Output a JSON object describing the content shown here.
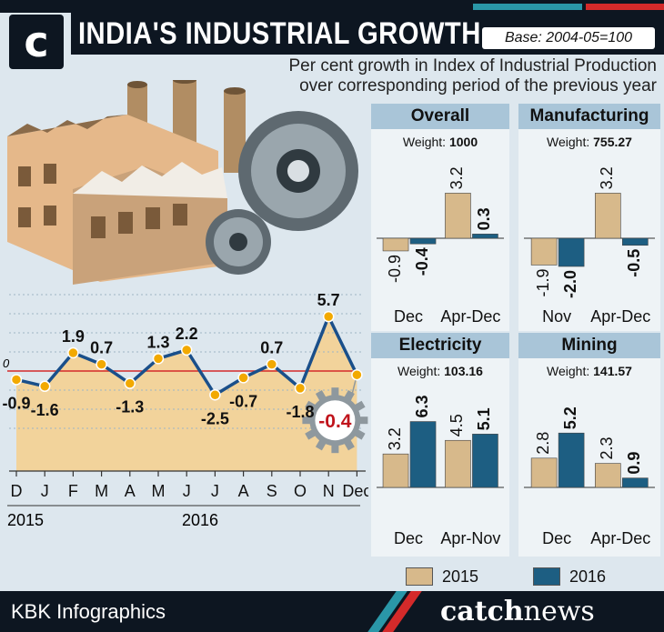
{
  "header": {
    "logo_letter": "c",
    "title": "INDIA'S INDUSTRIAL GROWTH",
    "base": "Base: 2004-05=100",
    "subtitle_line1": "Per cent growth in Index of Industrial Production",
    "subtitle_line2": "over corresponding period of the previous year"
  },
  "colors": {
    "series_2015": "#d7b98b",
    "series_2016": "#1d5e82",
    "area_fill": "#f2d39b",
    "line": "#1a4f8a",
    "marker": "#f2a900",
    "zero_line": "#d42a2a",
    "highlight_value": "#c0141c"
  },
  "chart_data": [
    {
      "type": "line",
      "zero_label": "0",
      "categories": [
        "D",
        "J",
        "F",
        "M",
        "A",
        "M",
        "J",
        "J",
        "A",
        "S",
        "O",
        "N",
        "Dec"
      ],
      "values": [
        -0.9,
        -1.6,
        1.9,
        0.7,
        -1.3,
        1.3,
        2.2,
        -2.5,
        -0.7,
        0.7,
        -1.8,
        5.7,
        -0.4
      ],
      "value_labels": [
        "-0.9",
        "-1.6",
        "1.9",
        "0.7",
        "-1.3",
        "1.3",
        "2.2",
        "-2.5",
        "-0.7",
        "0.7",
        "-1.8",
        "5.7",
        "-0.4"
      ],
      "year_labels": [
        "2015",
        "2016"
      ],
      "highlight_index": 12
    },
    {
      "type": "bar",
      "title": "Overall",
      "weight_label": "Weight:",
      "weight": "1000",
      "categories": [
        "Dec",
        "Apr-Dec"
      ],
      "series": [
        {
          "name": "2015",
          "values": [
            -0.9,
            3.2
          ],
          "labels": [
            "-0.9",
            "3.2"
          ]
        },
        {
          "name": "2016",
          "values": [
            -0.4,
            0.3
          ],
          "labels": [
            "-0.4",
            "0.3"
          ]
        }
      ]
    },
    {
      "type": "bar",
      "title": "Manufacturing",
      "weight_label": "Weight:",
      "weight": "755.27",
      "categories": [
        "Nov",
        "Apr-Dec"
      ],
      "series": [
        {
          "name": "2015",
          "values": [
            -1.9,
            3.2
          ],
          "labels": [
            "-1.9",
            "3.2"
          ]
        },
        {
          "name": "2016",
          "values": [
            -2.0,
            -0.5
          ],
          "labels": [
            "-2.0",
            "-0.5"
          ]
        }
      ]
    },
    {
      "type": "bar",
      "title": "Electricity",
      "weight_label": "Weight:",
      "weight": "103.16",
      "categories": [
        "Dec",
        "Apr-Nov"
      ],
      "series": [
        {
          "name": "2015",
          "values": [
            3.2,
            4.5
          ],
          "labels": [
            "3.2",
            "4.5"
          ]
        },
        {
          "name": "2016",
          "values": [
            6.3,
            5.1
          ],
          "labels": [
            "6.3",
            "5.1"
          ]
        }
      ]
    },
    {
      "type": "bar",
      "title": "Mining",
      "weight_label": "Weight:",
      "weight": "141.57",
      "categories": [
        "Dec",
        "Apr-Dec"
      ],
      "series": [
        {
          "name": "2015",
          "values": [
            2.8,
            2.3
          ],
          "labels": [
            "2.8",
            "2.3"
          ]
        },
        {
          "name": "2016",
          "values": [
            5.2,
            0.9
          ],
          "labels": [
            "5.2",
            "0.9"
          ]
        }
      ]
    }
  ],
  "legend": {
    "items": [
      "2015",
      "2016"
    ]
  },
  "footer": {
    "credit": "KBK Infographics",
    "brand_part1": "catch",
    "brand_part2": "news"
  }
}
